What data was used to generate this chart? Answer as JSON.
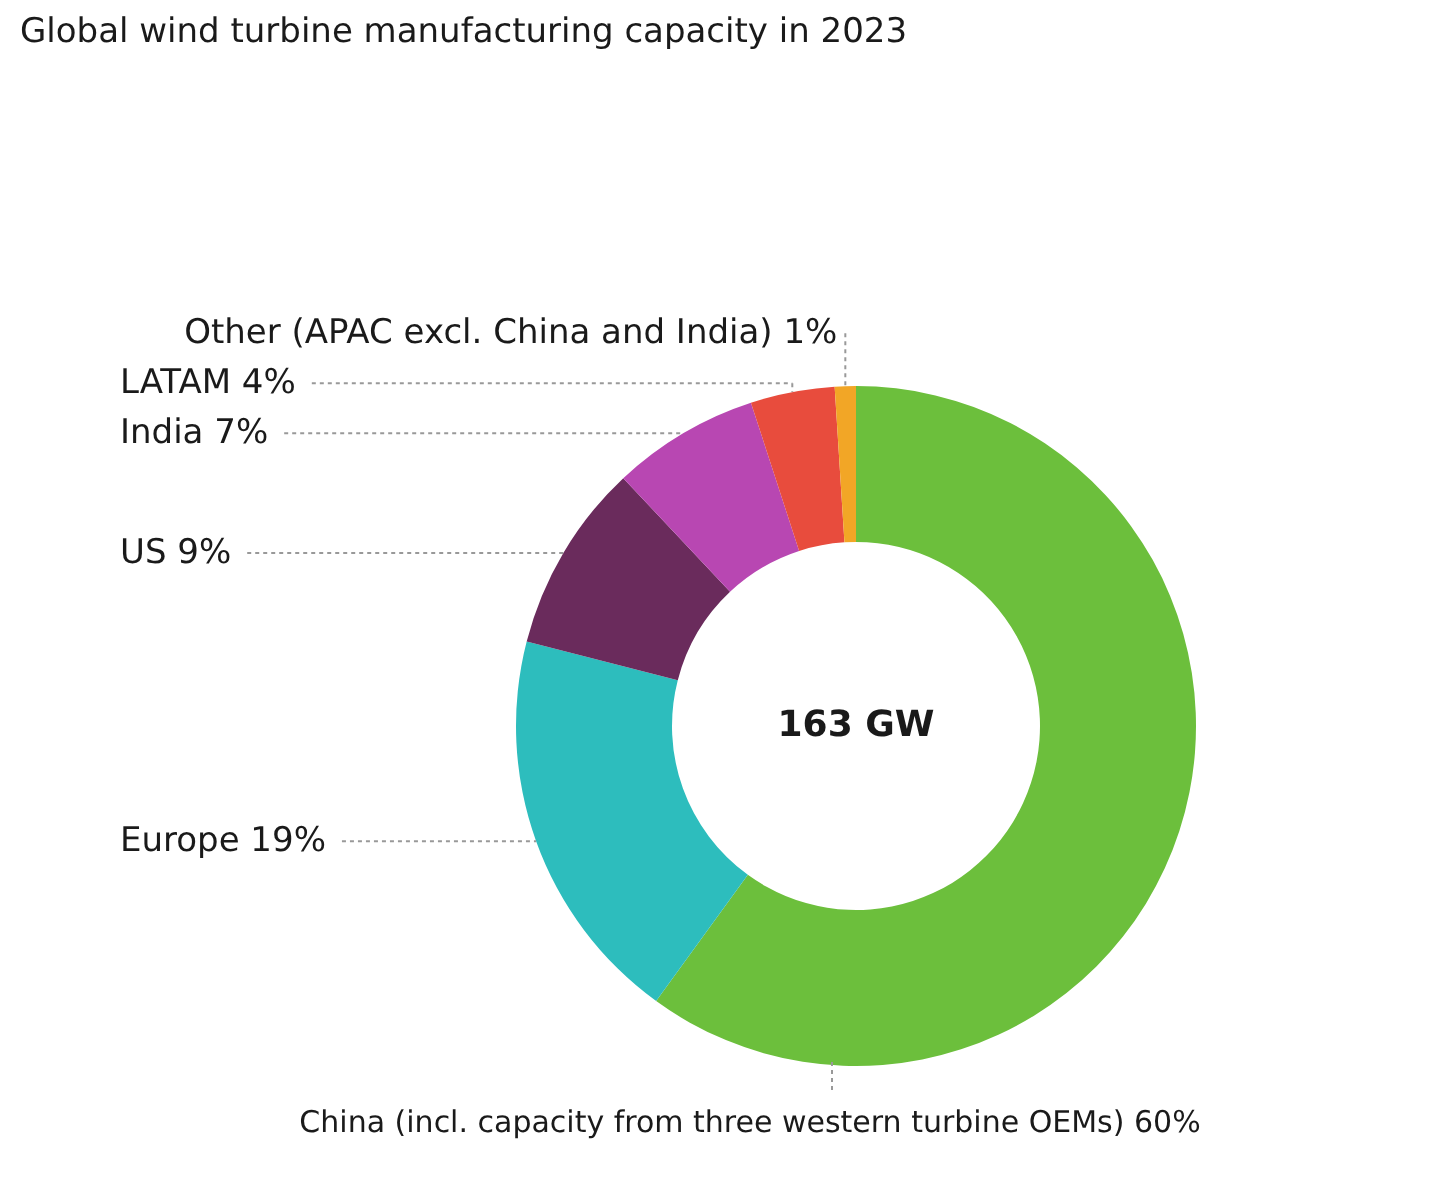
{
  "chart_data": {
    "type": "donut",
    "title": "Global wind turbine manufacturing capacity in 2023",
    "categories": [
      "China (incl. capacity from three western turbine OEMs)",
      "Europe",
      "US",
      "India",
      "LATAM",
      "Other (APAC excl. China and India)"
    ],
    "values": [
      60,
      19,
      9,
      7,
      4,
      1
    ],
    "colors": [
      "#6cbf3c",
      "#2dbdbd",
      "#6a2b5c",
      "#b847b2",
      "#e84c3d",
      "#f2a626"
    ],
    "value_labels": [
      "60%",
      "19%",
      "9%",
      "7%",
      "4%",
      "1%"
    ],
    "annotations": [
      "163 GW"
    ]
  }
}
